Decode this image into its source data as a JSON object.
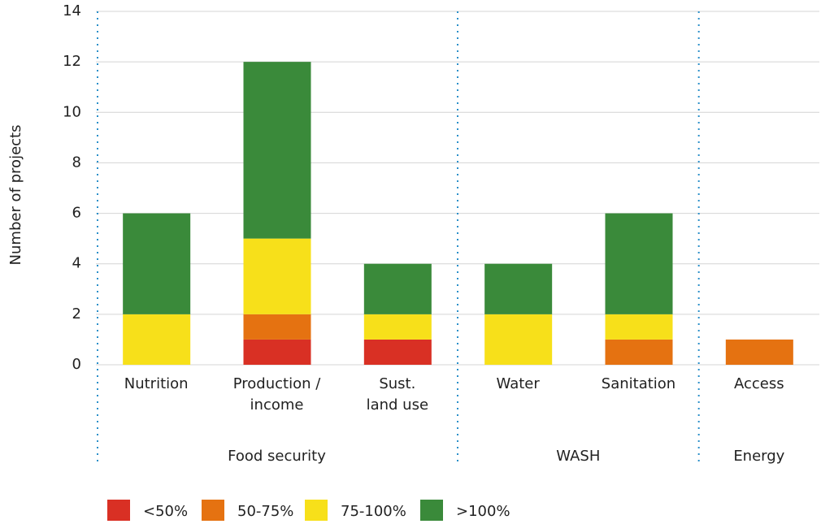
{
  "chart_data": {
    "type": "stacked_bar",
    "y_label": "Number of projects",
    "categories": [
      "Nutrition",
      "Production /\nincome",
      "Sust.\nland use",
      "Water",
      "Sanitation",
      "Access"
    ],
    "groups": [
      {
        "label": "Food security",
        "span": 3
      },
      {
        "label": "WASH",
        "span": 2
      },
      {
        "label": "Energy",
        "span": 1
      }
    ],
    "series": [
      {
        "name": "<50%",
        "color": "#d93024",
        "values": [
          0,
          1,
          1,
          0,
          0,
          0
        ]
      },
      {
        "name": "50-75%",
        "color": "#e57211",
        "values": [
          0,
          1,
          0,
          0,
          1,
          1
        ]
      },
      {
        "name": "75-100%",
        "color": "#f7e01a",
        "values": [
          2,
          3,
          1,
          2,
          1,
          0
        ]
      },
      {
        "name": ">100%",
        "color": "#3a8a3a",
        "values": [
          4,
          7,
          2,
          2,
          4,
          0
        ]
      }
    ],
    "ylim": [
      0,
      14
    ],
    "yticks": [
      0,
      2,
      4,
      6,
      8,
      10,
      12,
      14
    ],
    "grid": true
  }
}
